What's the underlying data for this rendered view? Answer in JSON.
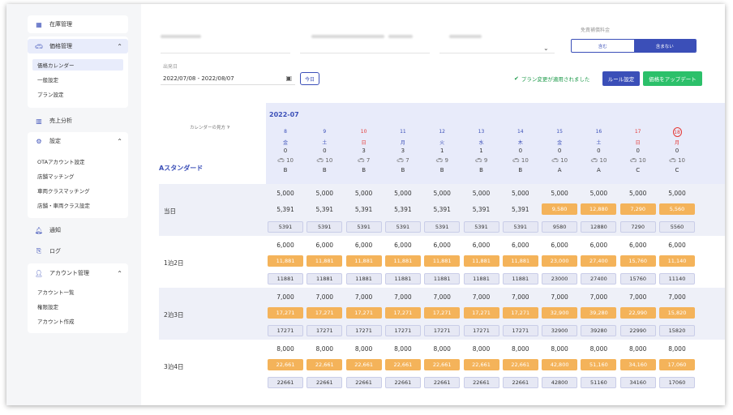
{
  "sidebar": {
    "inventory": "在庫管理",
    "price_mgmt": "価格管理",
    "price_sub": [
      "価格カレンダー",
      "一般設定",
      "プラン設定"
    ],
    "sales": "売上分析",
    "settings": "設定",
    "settings_sub": [
      "OTAアカウント設定",
      "店舗マッチング",
      "車両クラスマッチング",
      "店舗・車両クラス設定"
    ],
    "notice": "通知",
    "log": "ログ",
    "account": "アカウント管理",
    "account_sub": [
      "アカウント一覧",
      "権限設定",
      "アカウント作成"
    ]
  },
  "filters": {
    "option_label": "免責補償料金",
    "segment": [
      "含む",
      "含まない"
    ],
    "departure_label": "出発日",
    "date_range": "2022/07/08 - 2022/08/07",
    "today": "今日"
  },
  "actions": {
    "status": "プラン変更が適用されました",
    "rules": "ルール設定",
    "update": "価格をアップデート"
  },
  "colors": {
    "accent": "#3b4fb8",
    "green": "#2cc06a",
    "orange": "#f4b35a"
  },
  "calendar": {
    "month": "2022-07",
    "guide": "カレンダーの見方",
    "plan_name": "Aスタンダード",
    "days": [
      {
        "d": "8",
        "w": "金",
        "a": "0",
        "v": "10",
        "c": "B",
        "red": false
      },
      {
        "d": "9",
        "w": "土",
        "a": "0",
        "v": "10",
        "c": "B",
        "red": false
      },
      {
        "d": "10",
        "w": "日",
        "a": "3",
        "v": "7",
        "c": "B",
        "red": true
      },
      {
        "d": "11",
        "w": "月",
        "a": "3",
        "v": "7",
        "c": "B",
        "red": false
      },
      {
        "d": "12",
        "w": "火",
        "a": "1",
        "v": "9",
        "c": "B",
        "red": false
      },
      {
        "d": "13",
        "w": "水",
        "a": "1",
        "v": "9",
        "c": "B",
        "red": false
      },
      {
        "d": "14",
        "w": "木",
        "a": "0",
        "v": "10",
        "c": "B",
        "red": false
      },
      {
        "d": "15",
        "w": "金",
        "a": "0",
        "v": "10",
        "c": "A",
        "red": false
      },
      {
        "d": "16",
        "w": "土",
        "a": "0",
        "v": "10",
        "c": "A",
        "red": false
      },
      {
        "d": "17",
        "w": "日",
        "a": "0",
        "v": "10",
        "c": "C",
        "red": true
      },
      {
        "d": "18",
        "w": "月",
        "a": "0",
        "v": "10",
        "c": "C",
        "red": true
      }
    ],
    "rows": [
      {
        "label": "当日",
        "base": [
          "5,000",
          "5,000",
          "5,000",
          "5,000",
          "5,000",
          "5,000",
          "5,000",
          "5,000",
          "5,000",
          "5,000",
          "5,000"
        ],
        "calc": [
          "5,391",
          "5,391",
          "5,391",
          "5,391",
          "5,391",
          "5,391",
          "5,391",
          "9,580",
          "12,880",
          "7,290",
          "5,560"
        ],
        "final": [
          "5391",
          "5391",
          "5391",
          "5391",
          "5391",
          "5391",
          "5391",
          "9580",
          "12880",
          "7290",
          "5560"
        ]
      },
      {
        "label": "1泊2日",
        "base": [
          "6,000",
          "6,000",
          "6,000",
          "6,000",
          "6,000",
          "6,000",
          "6,000",
          "6,000",
          "6,000",
          "6,000",
          "6,000"
        ],
        "calc": [
          "11,881",
          "11,881",
          "11,881",
          "11,881",
          "11,881",
          "11,881",
          "11,881",
          "23,000",
          "27,400",
          "15,760",
          "11,140"
        ],
        "final": [
          "11881",
          "11881",
          "11881",
          "11881",
          "11881",
          "11881",
          "11881",
          "23000",
          "27400",
          "15760",
          "11140"
        ]
      },
      {
        "label": "2泊3日",
        "base": [
          "7,000",
          "7,000",
          "7,000",
          "7,000",
          "7,000",
          "7,000",
          "7,000",
          "7,000",
          "7,000",
          "7,000",
          "7,000"
        ],
        "calc": [
          "17,271",
          "17,271",
          "17,271",
          "17,271",
          "17,271",
          "17,271",
          "17,271",
          "32,900",
          "39,280",
          "22,990",
          "15,820"
        ],
        "final": [
          "17271",
          "17271",
          "17271",
          "17271",
          "17271",
          "17271",
          "17271",
          "32900",
          "39280",
          "22990",
          "15820"
        ]
      },
      {
        "label": "3泊4日",
        "base": [
          "8,000",
          "8,000",
          "8,000",
          "8,000",
          "8,000",
          "8,000",
          "8,000",
          "8,000",
          "8,000",
          "8,000",
          "8,000"
        ],
        "calc": [
          "22,661",
          "22,661",
          "22,661",
          "22,661",
          "22,661",
          "22,661",
          "22,661",
          "42,800",
          "51,160",
          "34,160",
          "17,060"
        ],
        "final": [
          "22661",
          "22661",
          "22661",
          "22661",
          "22661",
          "22661",
          "22661",
          "42800",
          "51160",
          "34160",
          "17060"
        ]
      }
    ]
  }
}
